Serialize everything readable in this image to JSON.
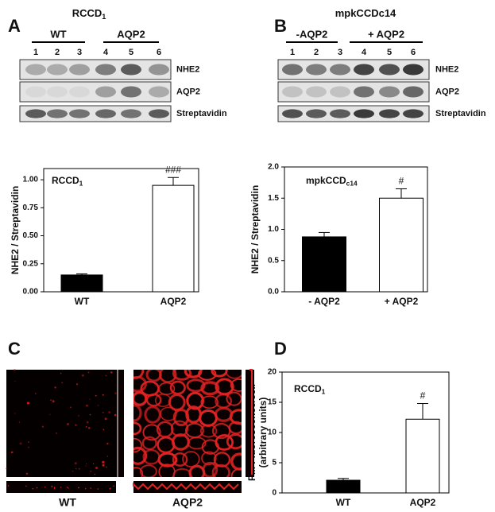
{
  "panel_a": {
    "letter": "A",
    "title": {
      "text": "RCCD",
      "sub": "1"
    },
    "groups": [
      "WT",
      "AQP2"
    ],
    "lanes": [
      "1",
      "2",
      "3",
      "4",
      "5",
      "6"
    ],
    "blots": [
      "NHE2",
      "AQP2",
      "Streptavidin"
    ]
  },
  "panel_b": {
    "letter": "B",
    "title": {
      "text": "mpkCCDc14",
      "sub": ""
    },
    "groups": [
      "-AQP2",
      "+ AQP2"
    ],
    "lanes": [
      "1",
      "2",
      "3",
      "4",
      "5",
      "6"
    ],
    "blots": [
      "NHE2",
      "AQP2",
      "Streptavidin"
    ]
  },
  "panel_c": {
    "letter": "C",
    "images": [
      "WT",
      "AQP2"
    ]
  },
  "panel_d": {
    "letter": "D"
  },
  "chart_data": [
    {
      "type": "bar",
      "label": {
        "text": "RCCD",
        "sub": "1"
      },
      "y_label": [
        "NHE2 / Streptavidin"
      ],
      "categories": [
        "WT",
        "AQP2"
      ],
      "values": [
        0.15,
        0.95
      ],
      "errors": [
        0.01,
        0.07
      ],
      "colors": [
        "#000000",
        "#ffffff"
      ],
      "annotations": [
        {
          "category": "AQP2",
          "text": "###"
        }
      ],
      "ylim": [
        0,
        1.1
      ],
      "yticks": [
        {
          "value": 0,
          "label": "0.00"
        },
        {
          "value": 0.25,
          "label": "0.25"
        },
        {
          "value": 0.5,
          "label": "0.50"
        },
        {
          "value": 0.75,
          "label": "0.75"
        },
        {
          "value": 1,
          "label": "1.00"
        }
      ]
    },
    {
      "type": "bar",
      "label": {
        "text": "mpkCCD",
        "sub": "c14"
      },
      "y_label": [
        "NHE2 / Streptavidin"
      ],
      "categories": [
        "- AQP2",
        "+ AQP2"
      ],
      "values": [
        0.88,
        1.5
      ],
      "errors": [
        0.07,
        0.15
      ],
      "colors": [
        "#000000",
        "#ffffff"
      ],
      "annotations": [
        {
          "category": "+ AQP2",
          "text": "#"
        }
      ],
      "ylim": [
        0,
        2
      ],
      "yticks": [
        {
          "value": 0,
          "label": "0.0"
        },
        {
          "value": 0.5,
          "label": "0.5"
        },
        {
          "value": 1,
          "label": "1.0"
        },
        {
          "value": 1.5,
          "label": "1.5"
        },
        {
          "value": 2,
          "label": "2.0"
        }
      ]
    },
    {
      "type": "bar",
      "label": {
        "text": "RCCD",
        "sub": "1"
      },
      "y_label": [
        "PM Fluorescence/cell",
        "(arbitrary units)"
      ],
      "categories": [
        "WT",
        "AQP2"
      ],
      "values": [
        2.1,
        12.2
      ],
      "errors": [
        0.3,
        2.6
      ],
      "colors": [
        "#000000",
        "#ffffff"
      ],
      "annotations": [
        {
          "category": "AQP2",
          "text": "#"
        }
      ],
      "ylim": [
        0,
        20
      ],
      "yticks": [
        0,
        5,
        10,
        15,
        20
      ]
    }
  ]
}
